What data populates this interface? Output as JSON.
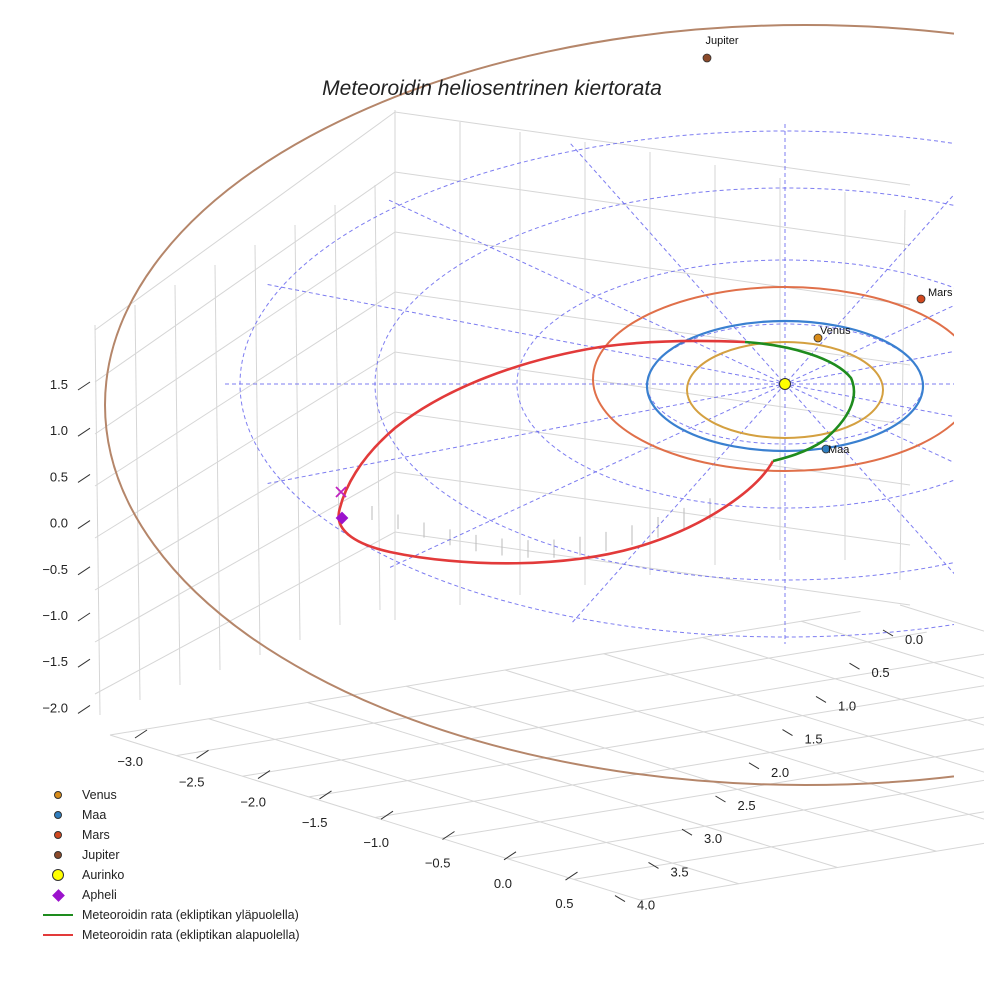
{
  "chart_data": {
    "type": "line",
    "projection": "3d",
    "title": "Meteoroidin heliosentrinen kiertorata",
    "xlabel": "",
    "ylabel": "",
    "zlabel": "",
    "xlim": [
      -3.3,
      0.75
    ],
    "ylim": [
      -0.1,
      4.1
    ],
    "zlim": [
      -2.2,
      1.8
    ],
    "x_ticks": [
      "−3.0",
      "−2.5",
      "−2.0",
      "−1.5",
      "−1.0",
      "−0.5",
      "0.0",
      "0.5"
    ],
    "y_ticks": [
      "0.0",
      "0.5",
      "1.0",
      "1.5",
      "2.0",
      "2.5",
      "3.0",
      "3.5",
      "4.0"
    ],
    "z_ticks": [
      "1.5",
      "1.0",
      "0.5",
      "0.0",
      "−0.5",
      "−1.0",
      "−1.5",
      "−2.0"
    ],
    "planets": [
      {
        "name": "Venus",
        "orbit_radius_au": 0.72,
        "color": "#d4a040",
        "marker_color": "#d98c1a"
      },
      {
        "name": "Maa",
        "orbit_radius_au": 1.0,
        "color": "#3a80d0",
        "marker_color": "#2f7ec0"
      },
      {
        "name": "Mars",
        "orbit_radius_au": 1.52,
        "color": "#e0704a",
        "marker_color": "#d2481f"
      },
      {
        "name": "Jupiter",
        "orbit_radius_au": 5.2,
        "color": "#b5866a",
        "marker_color": "#8b4a2a"
      }
    ],
    "sun": {
      "name": "Aurinko",
      "color": "#ffff00"
    },
    "reference_grid": {
      "ring_radii_au": [
        1,
        2,
        3,
        4
      ],
      "color": "#6666ee",
      "style": "dashed"
    },
    "series": [
      {
        "name": "Meteoroidin rata (ekliptikan yläpuolella)",
        "color": "#1e8c1e"
      },
      {
        "name": "Meteoroidin rata (ekliptikan alapuolella)",
        "color": "#e23a3a"
      }
    ],
    "aphelion": {
      "name": "Apheli",
      "x": -3.2,
      "y": 0.2,
      "z": -0.2,
      "color": "#9b12cc"
    },
    "legend_position": "lower-left",
    "legend": [
      {
        "label": "Venus",
        "kind": "dot",
        "color": "#d98c1a"
      },
      {
        "label": "Maa",
        "kind": "dot",
        "color": "#2f7ec0"
      },
      {
        "label": "Mars",
        "kind": "dot",
        "color": "#d2481f"
      },
      {
        "label": "Jupiter",
        "kind": "dot",
        "color": "#8b4a2a"
      },
      {
        "label": "Aurinko",
        "kind": "bigdot",
        "color": "#ffff00"
      },
      {
        "label": "Apheli",
        "kind": "diamond",
        "color": "#9b12cc"
      },
      {
        "label": "Meteoroidin rata (ekliptikan yläpuolella)",
        "kind": "line",
        "color": "#1e8c1e"
      },
      {
        "label": "Meteoroidin rata (ekliptikan alapuolella)",
        "kind": "line",
        "color": "#e23a3a"
      }
    ]
  }
}
